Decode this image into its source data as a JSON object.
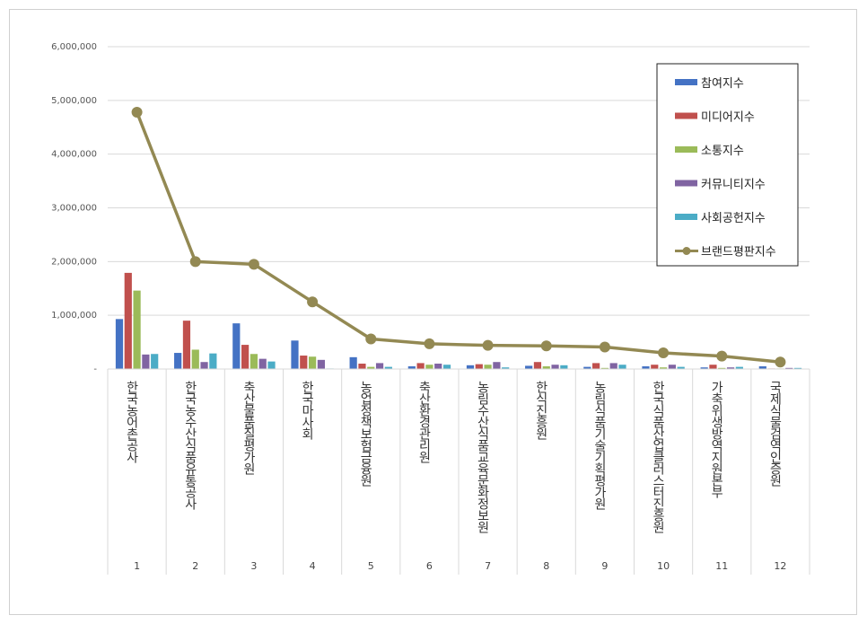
{
  "chart_data": {
    "type": "bar",
    "title": "",
    "xlabel": "",
    "ylabel": "",
    "ylim": [
      0,
      6000000
    ],
    "yticks": [
      "-",
      "1,000,000",
      "2,000,000",
      "3,000,000",
      "4,000,000",
      "5,000,000",
      "6,000,000"
    ],
    "grid": true,
    "legend_position": "top-right",
    "categories": [
      "한국농어촌공사",
      "한국농수산식품유통공사",
      "축산물품질평가원",
      "한국마사회",
      "농업정책보험금융원",
      "축산환경관리원",
      "농림수산식품교육문화정보원",
      "한식진흥원",
      "농림식품기술기획평가원",
      "한국식품산업클러스터진흥원",
      "가축위생방역지원본부",
      "국제식물검역인증원"
    ],
    "ranks": [
      "1",
      "2",
      "3",
      "4",
      "5",
      "6",
      "7",
      "8",
      "9",
      "10",
      "11",
      "12"
    ],
    "series": [
      {
        "name": "참여지수",
        "type": "bar",
        "color": "#4472c4",
        "values": [
          930000,
          300000,
          850000,
          530000,
          220000,
          50000,
          70000,
          60000,
          40000,
          50000,
          30000,
          50000
        ]
      },
      {
        "name": "미디어지수",
        "type": "bar",
        "color": "#c0504d",
        "values": [
          1790000,
          900000,
          450000,
          250000,
          100000,
          110000,
          90000,
          130000,
          110000,
          80000,
          80000,
          10000
        ]
      },
      {
        "name": "소통지수",
        "type": "bar",
        "color": "#9bbb59",
        "values": [
          1460000,
          360000,
          280000,
          230000,
          40000,
          80000,
          80000,
          50000,
          20000,
          30000,
          20000,
          10000
        ]
      },
      {
        "name": "커뮤니티지수",
        "type": "bar",
        "color": "#8064a2",
        "values": [
          270000,
          130000,
          190000,
          170000,
          110000,
          100000,
          130000,
          80000,
          110000,
          80000,
          30000,
          20000
        ]
      },
      {
        "name": "사회공헌지수",
        "type": "bar",
        "color": "#4bacc6",
        "values": [
          280000,
          290000,
          140000,
          10000,
          40000,
          80000,
          30000,
          70000,
          80000,
          40000,
          40000,
          20000
        ]
      },
      {
        "name": "브랜드평판지수",
        "type": "line",
        "color": "#938953",
        "values": [
          4780000,
          2000000,
          1950000,
          1250000,
          560000,
          470000,
          440000,
          430000,
          410000,
          300000,
          240000,
          130000
        ]
      }
    ]
  }
}
